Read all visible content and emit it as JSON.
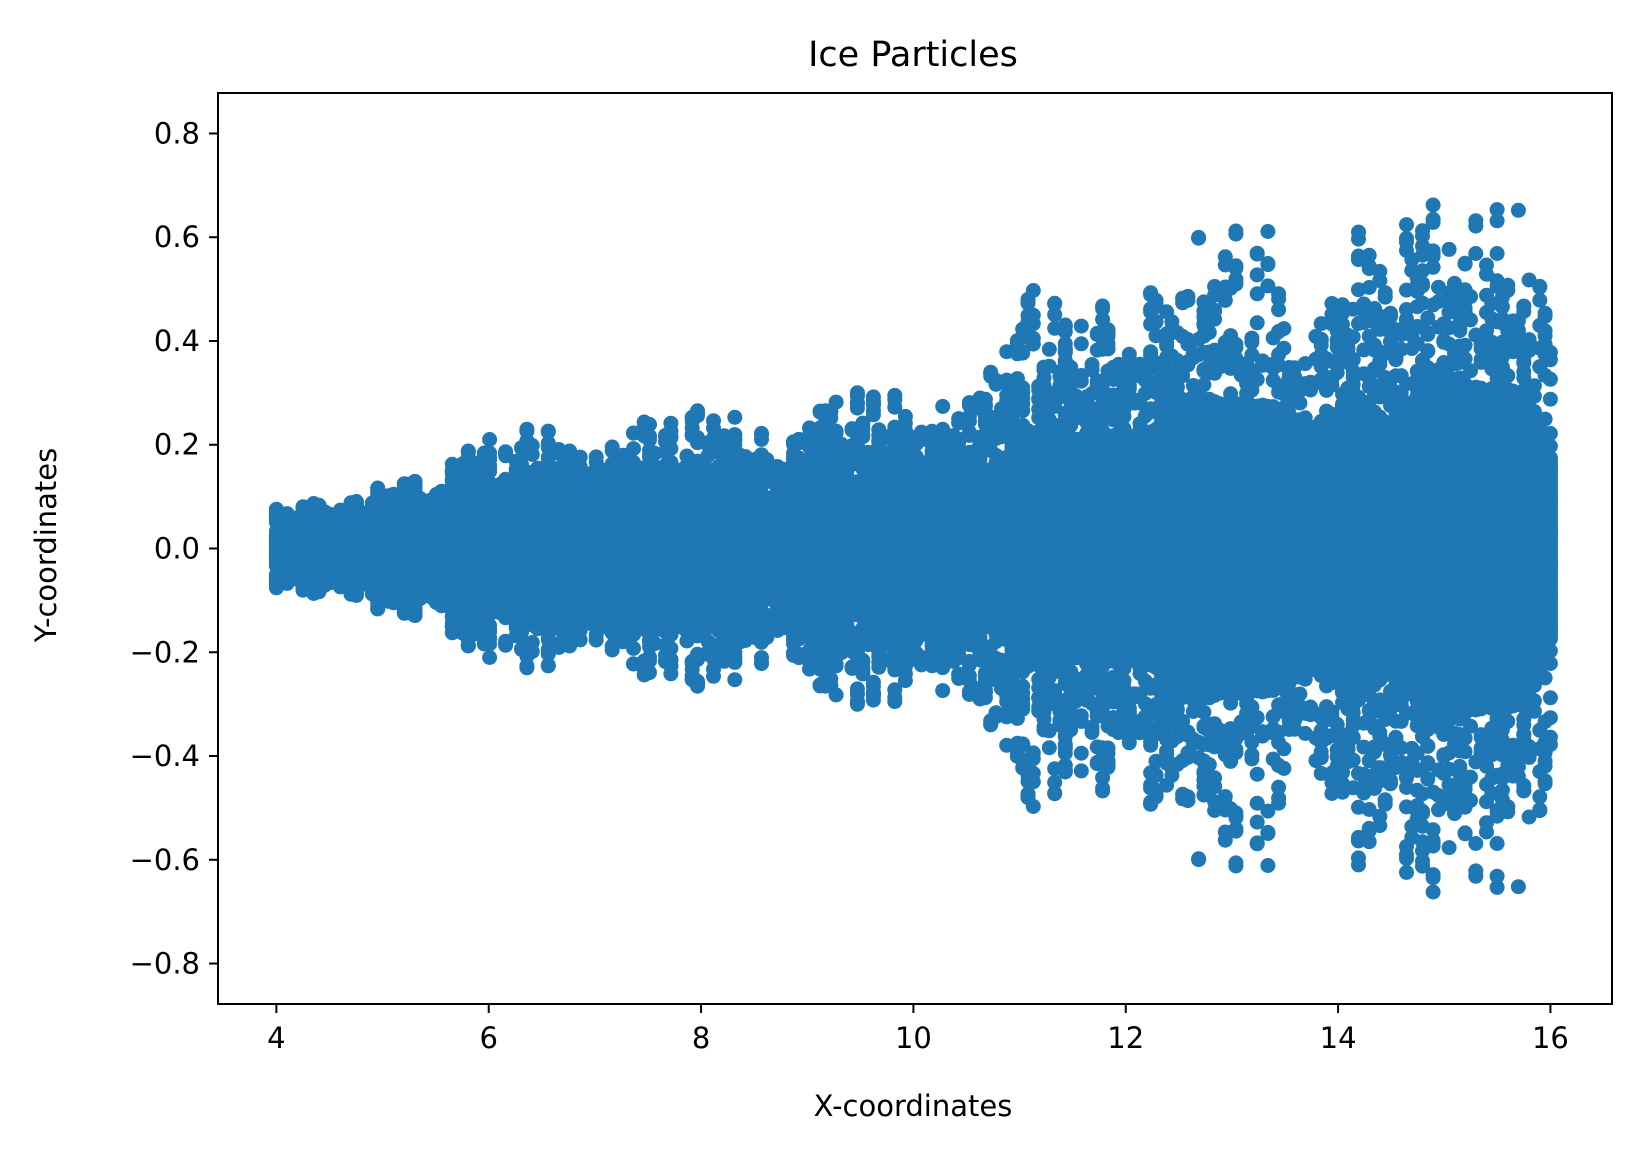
{
  "chart_data": {
    "type": "scatter",
    "title": "Ice Particles",
    "xlabel": "X-coordinates",
    "ylabel": "Y-coordinates",
    "xlim": [
      3.45,
      16.58
    ],
    "ylim": [
      -0.878,
      0.878
    ],
    "xticks": [
      4,
      6,
      8,
      10,
      12,
      14,
      16
    ],
    "xtick_labels": [
      "4",
      "6",
      "8",
      "10",
      "12",
      "14",
      "16"
    ],
    "yticks": [
      -0.8,
      -0.6,
      -0.4,
      -0.2,
      0.0,
      0.2,
      0.4,
      0.6,
      0.8
    ],
    "ytick_labels": [
      "−0.8",
      "−0.6",
      "−0.4",
      "−0.2",
      "0.0",
      "0.2",
      "0.4",
      "0.6",
      "0.8"
    ],
    "grid": false,
    "legend": "none",
    "color": "#1f77b4",
    "series": [
      {
        "description": "Particle columns: each column at x has points symmetric about y=0 within the envelope half-width",
        "x_range": [
          4,
          16
        ],
        "envelope": [
          [
            4.0,
            0.09
          ],
          [
            4.4,
            0.1
          ],
          [
            5.0,
            0.12
          ],
          [
            5.5,
            0.15
          ],
          [
            5.9,
            0.21
          ],
          [
            6.5,
            0.28
          ],
          [
            7.0,
            0.2
          ],
          [
            7.5,
            0.26
          ],
          [
            7.9,
            0.29
          ],
          [
            8.5,
            0.25
          ],
          [
            9.0,
            0.25
          ],
          [
            9.3,
            0.31
          ],
          [
            9.75,
            0.33
          ],
          [
            10.5,
            0.28
          ],
          [
            10.65,
            0.34
          ],
          [
            11.2,
            0.54
          ],
          [
            11.7,
            0.48
          ],
          [
            12.0,
            0.48
          ],
          [
            12.5,
            0.59
          ],
          [
            12.65,
            0.65
          ],
          [
            13.4,
            0.64
          ],
          [
            13.6,
            0.51
          ],
          [
            14.0,
            0.6
          ],
          [
            14.1,
            0.72
          ],
          [
            14.5,
            0.55
          ],
          [
            14.7,
            0.66
          ],
          [
            14.95,
            0.8
          ],
          [
            15.3,
            0.68
          ],
          [
            15.5,
            0.73
          ],
          [
            15.75,
            0.69
          ],
          [
            16.0,
            0.42
          ]
        ]
      }
    ]
  }
}
